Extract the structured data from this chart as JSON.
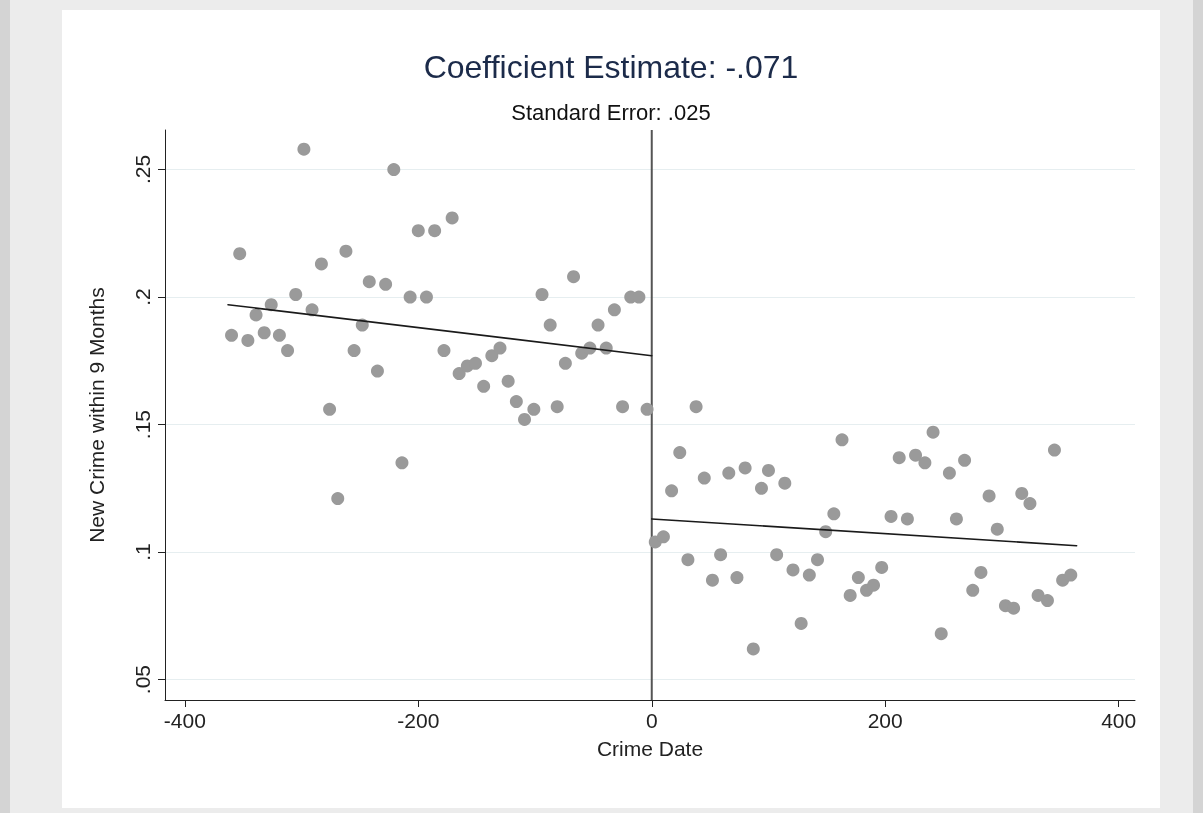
{
  "chart_data": {
    "type": "scatter",
    "title": "Coefficient Estimate: -.071",
    "subtitle": "Standard Error: .025",
    "xlabel": "Crime Date",
    "ylabel": "New Crime within 9 Months",
    "xlim": [
      -417,
      414
    ],
    "xticks": [
      -400,
      -200,
      0,
      200,
      400
    ],
    "ylim": [
      0.042,
      0.2655
    ],
    "yticks": [
      {
        "value": 0.05,
        "label": ".05"
      },
      {
        "value": 0.1,
        "label": ".1"
      },
      {
        "value": 0.15,
        "label": ".15"
      },
      {
        "value": 0.2,
        "label": ".2"
      },
      {
        "value": 0.25,
        "label": ".25"
      }
    ],
    "grid": "y",
    "ref_lines": [
      {
        "axis": "x",
        "value": 0,
        "color": "#555555"
      }
    ],
    "series": [
      {
        "color": "#9a9a9a",
        "x": [
          -360,
          -353,
          -346,
          -339,
          -332,
          -326,
          -319,
          -312,
          -305,
          -298,
          -291,
          -283,
          -276,
          -269,
          -262,
          -255,
          -248,
          -242,
          -235,
          -228,
          -221,
          -214,
          -207,
          -200,
          -193,
          -186,
          -178,
          -171,
          -165,
          -158,
          -151,
          -144,
          -137,
          -130,
          -123,
          -116,
          -109,
          -101,
          -94,
          -87,
          -81,
          -74,
          -67,
          -60,
          -53,
          -46,
          -39,
          -32,
          -25,
          -18,
          -11,
          -4,
          3,
          10,
          17,
          24,
          31,
          38,
          45,
          52,
          59,
          66,
          73,
          80,
          87,
          94,
          100,
          107,
          114,
          121,
          128,
          135,
          142,
          149,
          156,
          163,
          170,
          177,
          184,
          190,
          197,
          205,
          212,
          219,
          226,
          234,
          241,
          248,
          255,
          261,
          268,
          275,
          282,
          289,
          296,
          303,
          310,
          317,
          324,
          331,
          339,
          345,
          352,
          359
        ],
        "values": [
          0.185,
          0.217,
          0.183,
          0.193,
          0.186,
          0.197,
          0.185,
          0.179,
          0.201,
          0.258,
          0.195,
          0.213,
          0.156,
          0.121,
          0.218,
          0.179,
          0.189,
          0.206,
          0.171,
          0.205,
          0.25,
          0.135,
          0.2,
          0.226,
          0.2,
          0.226,
          0.179,
          0.231,
          0.17,
          0.173,
          0.174,
          0.165,
          0.177,
          0.18,
          0.167,
          0.159,
          0.152,
          0.156,
          0.201,
          0.189,
          0.157,
          0.174,
          0.208,
          0.178,
          0.18,
          0.189,
          0.18,
          0.195,
          0.157,
          0.2,
          0.2,
          0.156,
          0.104,
          0.106,
          0.124,
          0.139,
          0.097,
          0.157,
          0.129,
          0.089,
          0.099,
          0.131,
          0.09,
          0.133,
          0.062,
          0.125,
          0.132,
          0.099,
          0.127,
          0.093,
          0.072,
          0.091,
          0.097,
          0.108,
          0.115,
          0.144,
          0.083,
          0.09,
          0.085,
          0.087,
          0.094,
          0.114,
          0.137,
          0.113,
          0.138,
          0.135,
          0.147,
          0.068,
          0.131,
          0.113,
          0.136,
          0.085,
          0.092,
          0.122,
          0.109,
          0.079,
          0.078,
          0.123,
          0.119,
          0.083,
          0.081,
          0.14,
          0.089,
          0.091
        ]
      },
      {
        "type": "line",
        "color": "#1a1a1a",
        "x": [
          -363,
          0
        ],
        "values": [
          0.197,
          0.177
        ]
      },
      {
        "type": "line",
        "color": "#1a1a1a",
        "x": [
          0,
          364
        ],
        "values": [
          0.113,
          0.1025
        ]
      }
    ]
  }
}
